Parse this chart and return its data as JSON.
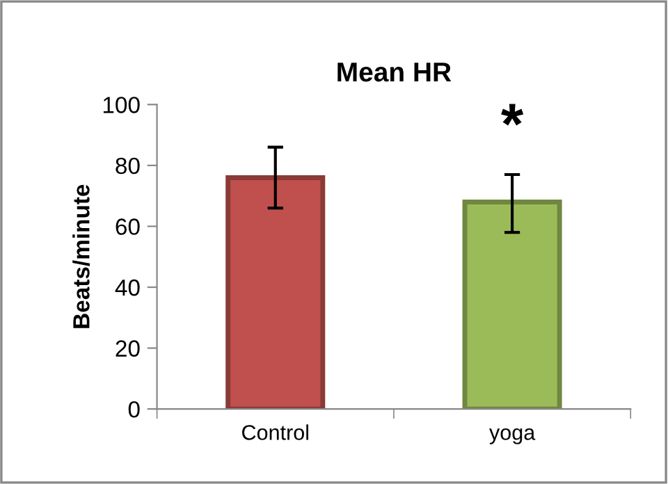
{
  "chart_data": {
    "type": "bar",
    "title": "Mean HR",
    "ylabel": "Beats/minute",
    "categories": [
      "Control",
      "yoga"
    ],
    "values": [
      76,
      68
    ],
    "colors": [
      "#c0504d",
      "#9bbb59"
    ],
    "errors": [
      10,
      [
        58,
        77
      ]
    ],
    "ylim": [
      0,
      100
    ],
    "yticks": [
      0,
      20,
      40,
      60,
      80,
      100
    ],
    "annotations": [
      "*"
    ],
    "grid": false,
    "legend": false
  }
}
